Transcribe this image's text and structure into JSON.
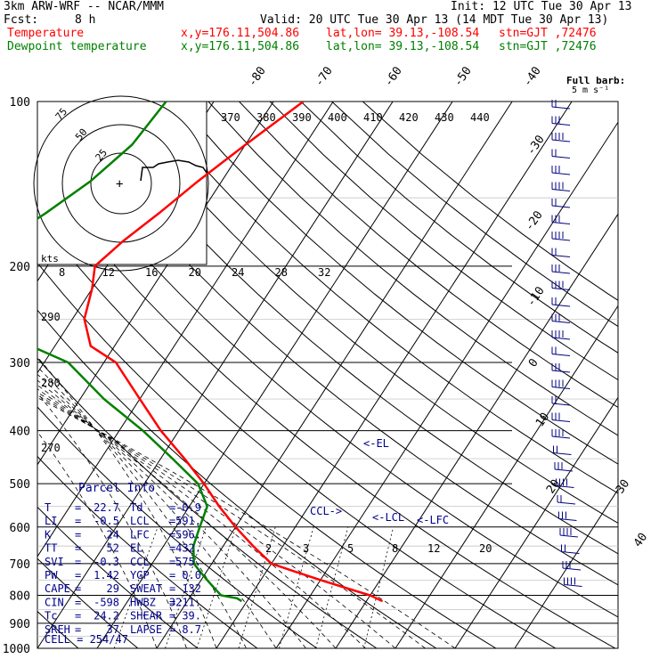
{
  "header": {
    "model": "3km ARW-WRF -- NCAR/MMM",
    "init": "Init: 12 UTC Tue 30 Apr 13",
    "fcst_label": "Fcst:",
    "fcst_value": "8 h",
    "valid": "Valid: 20 UTC Tue 30 Apr 13 (14 MDT Tue 30 Apr 13)",
    "temp_label": "Temperature",
    "dew_label": "Dewpoint temperature",
    "xy": "x,y=176.11,504.86",
    "latlon": "lat,lon= 39.13,-108.54",
    "stn": "stn=GJT ,72476"
  },
  "colors": {
    "temperature": "#ff0000",
    "dewpoint": "#008000",
    "text": "#000000",
    "label": "#00008b",
    "wind": "#000080"
  },
  "chart_data": {
    "type": "line",
    "pressure_levels": [
      100,
      200,
      300,
      400,
      500,
      600,
      700,
      800,
      900,
      1000
    ],
    "isotherm_labels": [
      "-80",
      "-70",
      "-60",
      "-50",
      "-40",
      "-30",
      "-20",
      "-10",
      "0",
      "10",
      "20",
      "30",
      "40"
    ],
    "theta_labels": [
      "370",
      "380",
      "390",
      "400",
      "410",
      "420",
      "430",
      "440"
    ],
    "dry_adiabat_labels": [
      "290",
      "280",
      "270"
    ],
    "mixing_ratio_labels": [
      "2",
      "3",
      "5",
      "8",
      "12",
      "20"
    ],
    "series": [
      {
        "name": "Temperature",
        "x": [
          -45,
          -50,
          -54,
          -57,
          -60,
          -62,
          -60,
          -58,
          -54,
          -48,
          -40,
          -33,
          -26,
          -20,
          -15,
          -10,
          -5,
          0,
          5,
          10,
          15,
          20,
          22.7
        ],
        "pressure": [
          100,
          120,
          140,
          160,
          180,
          200,
          220,
          250,
          280,
          300,
          350,
          400,
          450,
          500,
          550,
          600,
          650,
          700,
          725,
          750,
          775,
          800,
          820
        ]
      },
      {
        "name": "Dewpoint temperature",
        "x": [
          -68,
          -69,
          -72,
          -76,
          -80,
          -82,
          -79,
          -72,
          -64,
          -56,
          -46,
          -36,
          -28,
          -21,
          -17,
          -16,
          -15,
          -13,
          -11,
          -9,
          -7,
          -5,
          -2,
          -0.9
        ],
        "pressure": [
          100,
          120,
          140,
          160,
          180,
          200,
          220,
          250,
          280,
          300,
          350,
          400,
          450,
          500,
          550,
          600,
          650,
          700,
          725,
          750,
          775,
          800,
          810,
          820
        ]
      }
    ],
    "annotations": [
      "<-EL",
      "CCL->",
      "<-LCL",
      "<-LFC"
    ],
    "hodograph": {
      "rings": [
        "25",
        "50",
        "75"
      ],
      "units": "kts"
    },
    "wind_scale": {
      "title": "Full barb:",
      "units": "5 m s⁻¹"
    }
  },
  "parcel": {
    "title": "Parcel Info",
    "rows": [
      [
        "T",
        "=",
        "22.7",
        "Td",
        "=",
        "-0.9"
      ],
      [
        "LI",
        "=",
        "-0.5",
        "LCL",
        "=",
        "591."
      ],
      [
        "K",
        "=",
        "24",
        "LFC",
        "=",
        "596."
      ],
      [
        "TT",
        "=",
        "52",
        "EL",
        "=",
        "432."
      ],
      [
        "SVI",
        "=",
        "-0.3",
        "CCL",
        "=",
        "575."
      ],
      [
        "PW",
        "=",
        "1.42",
        "YGP",
        "=",
        "0.0"
      ],
      [
        "CAPE",
        "=",
        "29",
        "SWEAT",
        "=",
        "132"
      ],
      [
        "CIN",
        "=",
        "-598",
        "HWBZ",
        "=",
        "3211."
      ],
      [
        "Tc",
        "=",
        "24.2",
        "SHEAR",
        "=",
        "39."
      ],
      [
        "SREH",
        "=",
        "37",
        "LAPSE",
        "=",
        "8.7"
      ]
    ],
    "cell_label": "CELL = 254/47"
  }
}
